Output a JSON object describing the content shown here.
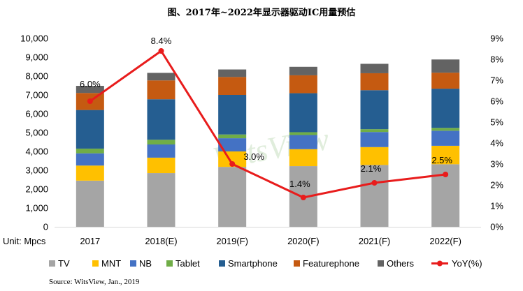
{
  "chart_data": {
    "type": "bar",
    "stacked": true,
    "title": "图、2017年~2022年显示器驱动IC用量预估",
    "unit_label": "Unit: Mpcs",
    "categories": [
      "2017",
      "2018(E)",
      "2019(F)",
      "2020(F)",
      "2021(F)",
      "2022(F)"
    ],
    "y_left": {
      "min": 0,
      "max": 10000,
      "step": 1000,
      "ticks": [
        "0",
        "1,000",
        "2,000",
        "3,000",
        "4,000",
        "5,000",
        "6,000",
        "7,000",
        "8,000",
        "9,000",
        "10,000"
      ]
    },
    "y_right": {
      "min": 0,
      "max": 9,
      "step": 1,
      "ticks": [
        "0%",
        "1%",
        "2%",
        "3%",
        "4%",
        "5%",
        "6%",
        "7%",
        "8%",
        "9%"
      ]
    },
    "series": [
      {
        "name": "TV",
        "color": "#a5a5a5",
        "values": [
          2450,
          2850,
          3180,
          3220,
          3280,
          3320
        ]
      },
      {
        "name": "MNT",
        "color": "#ffc000",
        "values": [
          800,
          820,
          820,
          900,
          950,
          980
        ]
      },
      {
        "name": "NB",
        "color": "#4472c4",
        "values": [
          650,
          700,
          700,
          750,
          800,
          800
        ]
      },
      {
        "name": "Tablet",
        "color": "#70ad47",
        "values": [
          250,
          250,
          200,
          150,
          150,
          150
        ]
      },
      {
        "name": "Smartphone",
        "color": "#255e91",
        "values": [
          2050,
          2150,
          2100,
          2070,
          2070,
          2080
        ]
      },
      {
        "name": "Featurephone",
        "color": "#c55a11",
        "values": [
          900,
          1000,
          950,
          950,
          900,
          850
        ]
      },
      {
        "name": "Others",
        "color": "#636363",
        "values": [
          380,
          400,
          400,
          450,
          500,
          700
        ]
      }
    ],
    "line": {
      "name": "YoY(%)",
      "color": "#e81c1c",
      "values": [
        6.0,
        8.4,
        3.0,
        1.4,
        2.1,
        2.5
      ],
      "labels": [
        "6.0%",
        "8.4%",
        "3.0%",
        "1.4%",
        "2.1%",
        "2.5%"
      ]
    },
    "legend_position": "bottom",
    "watermark": "WitsView"
  },
  "source": "Source: WitsView, Jan., 2019"
}
